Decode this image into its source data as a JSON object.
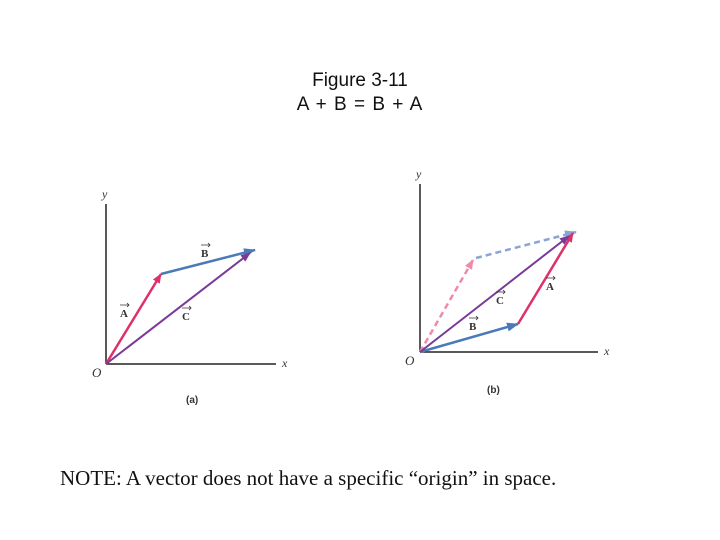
{
  "title": {
    "line1": "Figure 3-11",
    "line2": "A + B = B + A"
  },
  "panel_a": {
    "caption": "(a)",
    "axis_x": "x",
    "axis_y": "y",
    "origin": "O",
    "vector_a": "A",
    "vector_b": "B",
    "vector_c": "C"
  },
  "panel_b": {
    "caption": "(b)",
    "axis_x": "x",
    "axis_y": "y",
    "origin": "O",
    "vector_a": "A",
    "vector_b": "B",
    "vector_c": "C"
  },
  "note": "NOTE: A vector does not have a specific “origin” in space.",
  "colors": {
    "vector_a": "#e0306a",
    "vector_b": "#4a7ab8",
    "vector_c": "#7a3a98",
    "dashed_a": "#f08aa8",
    "dashed_b": "#8aa4d4",
    "axis": "#222222"
  }
}
